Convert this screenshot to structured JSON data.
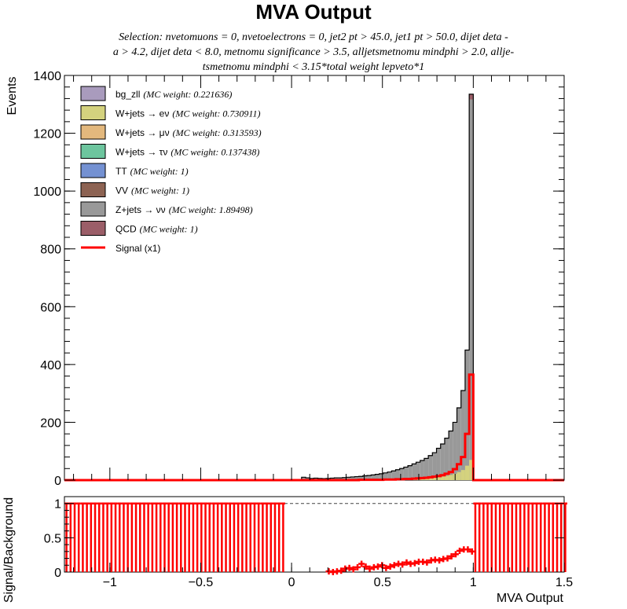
{
  "chart_data": [
    {
      "type": "stacked-histogram",
      "title": "MVA Output",
      "subtitle_lines": [
        "Selection: nvetomuons = 0, nvetoelectrons = 0, jet2 pt > 45.0, jet1 pt > 50.0, dijet deta -",
        "a > 4.2, dijet deta < 8.0, metnomu significance > 3.5, alljetsmetnomu mindphi > 2.0, allje-",
        "tsmetnomu mindphi < 3.15*total weight lepveto*1"
      ],
      "ylabel": "Events",
      "xlim": [
        -1.25,
        1.5
      ],
      "ylim": [
        0,
        1400
      ],
      "yticks": [
        0,
        200,
        400,
        600,
        800,
        1000,
        1200,
        1400
      ],
      "bin_edges_x": [
        -0.02,
        0.9775,
        0.0225
      ],
      "grid": false,
      "legend_position": "top-left",
      "legend": [
        {
          "name": "bg_zll",
          "weight": "(MC weight: 0.221636)",
          "color": "#a99bbd"
        },
        {
          "name": "W+jets → eν",
          "weight": "(MC weight: 0.730911)",
          "color": "#d4d27e"
        },
        {
          "name": "W+jets → μν",
          "weight": "(MC weight: 0.313593)",
          "color": "#e3b87d"
        },
        {
          "name": "W+jets → τν",
          "weight": "(MC weight: 0.137438)",
          "color": "#6dc59e"
        },
        {
          "name": "TT",
          "weight": "(MC weight: 1)",
          "color": "#7491d2"
        },
        {
          "name": "VV",
          "weight": "(MC weight: 1)",
          "color": "#8d6353"
        },
        {
          "name": "Z+jets → νν",
          "weight": "(MC weight: 1.89498)",
          "color": "#999999"
        },
        {
          "name": "QCD",
          "weight": "(MC weight: 1)",
          "color": "#9b5e68"
        },
        {
          "name": "Signal (x1)",
          "weight": "",
          "color": "#ff0000"
        }
      ],
      "series": {
        "total_background": [
          10,
          8,
          6,
          7,
          6,
          5,
          6,
          7,
          8,
          8,
          9,
          10,
          11,
          12,
          13,
          15,
          16,
          18,
          20,
          22,
          25,
          28,
          32,
          36,
          40,
          45,
          50,
          56,
          62,
          68,
          75,
          85,
          95,
          110,
          125,
          145,
          170,
          200,
          250,
          310,
          450,
          1335
        ],
        "wjets_enu": [
          1,
          1,
          1,
          1,
          1,
          1,
          1,
          1,
          1,
          1,
          1,
          1,
          1,
          2,
          2,
          2,
          2,
          2,
          3,
          3,
          3,
          3,
          4,
          4,
          4,
          5,
          5,
          6,
          6,
          7,
          8,
          9,
          10,
          11,
          13,
          15,
          18,
          22,
          28,
          35,
          50,
          70
        ],
        "signal": [
          0,
          0,
          0,
          0,
          0,
          0,
          0,
          0,
          0,
          0,
          0,
          0,
          0,
          0,
          1,
          1,
          1,
          1,
          1,
          1,
          2,
          2,
          2,
          3,
          3,
          4,
          4,
          5,
          6,
          7,
          8,
          10,
          12,
          14,
          17,
          22,
          28,
          38,
          55,
          80,
          160,
          365
        ]
      }
    },
    {
      "type": "ratio",
      "ylabel": "Signal/Background",
      "xlabel": "MVA Output",
      "xlim": [
        -1.25,
        1.5
      ],
      "ylim": [
        0,
        1.1
      ],
      "yticks": [
        0,
        0.5,
        1
      ],
      "xticks": [
        -1,
        -0.5,
        0,
        0.5,
        1,
        1.5
      ],
      "reference_line": 1,
      "full_ratio_bins_left": [
        -1.25,
        -0.05
      ],
      "full_ratio_bins_right": [
        1.0,
        1.5
      ],
      "bin_width": 0.0225,
      "ratio_x": [
        0.205,
        0.228,
        0.25,
        0.273,
        0.295,
        0.318,
        0.34,
        0.363,
        0.385,
        0.408,
        0.43,
        0.453,
        0.475,
        0.498,
        0.52,
        0.543,
        0.565,
        0.588,
        0.61,
        0.633,
        0.655,
        0.678,
        0.7,
        0.723,
        0.745,
        0.768,
        0.79,
        0.813,
        0.835,
        0.858,
        0.88,
        0.903,
        0.925,
        0.948,
        0.97,
        0.993
      ],
      "ratio_y": [
        0.01,
        0.0,
        0.01,
        0.02,
        0.05,
        0.06,
        0.04,
        0.07,
        0.12,
        0.08,
        0.05,
        0.07,
        0.08,
        0.1,
        0.06,
        0.08,
        0.1,
        0.12,
        0.11,
        0.14,
        0.12,
        0.13,
        0.15,
        0.15,
        0.14,
        0.17,
        0.18,
        0.17,
        0.19,
        0.2,
        0.23,
        0.26,
        0.31,
        0.33,
        0.33,
        0.3
      ]
    }
  ]
}
